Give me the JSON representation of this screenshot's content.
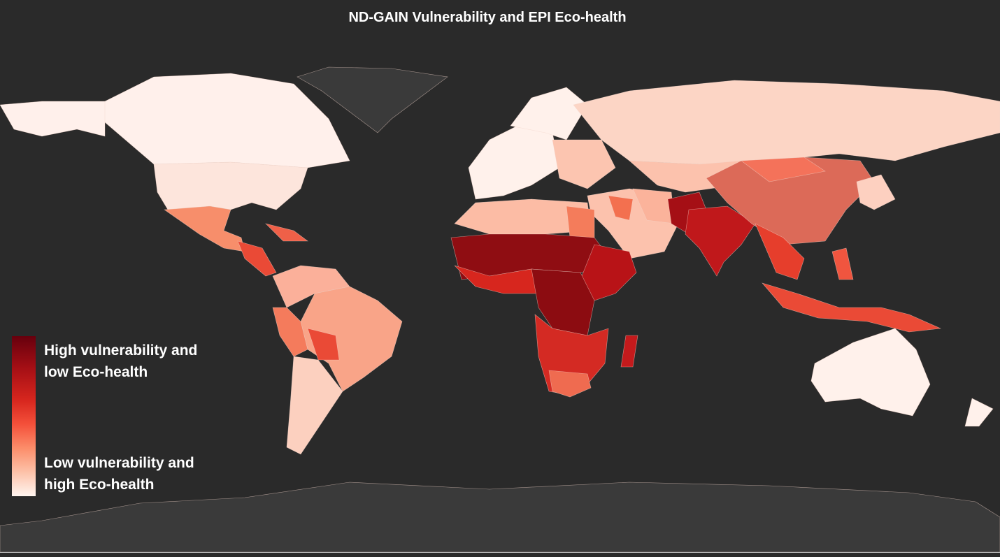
{
  "title": "ND-GAIN Vulnerability and EPI Eco-health",
  "legend": {
    "high_line1": "High vulnerability and",
    "high_line2": "low Eco-health",
    "low_line1": "Low vulnerability and",
    "low_line2": "high Eco-health",
    "color_high": "#67000d",
    "color_low": "#fff5f0"
  },
  "colors": {
    "background": "#2a2a2a",
    "no_data": "#3a3a3a"
  }
}
